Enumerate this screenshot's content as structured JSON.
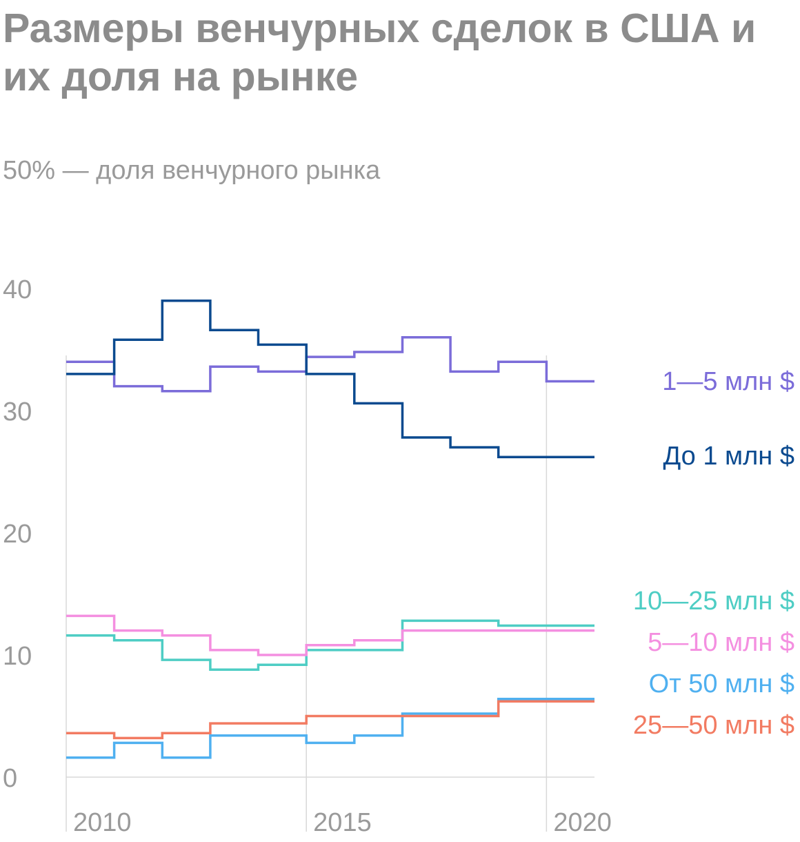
{
  "chart_title": "Размеры венчурных сделок в США и их доля на рынке",
  "chart_subtitle": "50% — доля венчурного рынка",
  "chart_data": {
    "type": "line",
    "title": "Размеры венчурных сделок в США и их доля на рынке",
    "subtitle": "50% — доля венчурного рынка",
    "xlabel": "",
    "ylabel": "",
    "ylim": [
      0,
      40
    ],
    "yticks": [
      0,
      10,
      20,
      30,
      40
    ],
    "xticks": [
      2010,
      2015,
      2020
    ],
    "xlim": [
      2010,
      2021
    ],
    "step": true,
    "grid": "vertical",
    "legend": "right, labels at line ends",
    "x": [
      2010,
      2011,
      2012,
      2013,
      2014,
      2015,
      2016,
      2017,
      2018,
      2019,
      2020
    ],
    "series": [
      {
        "name": "1—5 млн $",
        "color": "#7b6cd9",
        "values": [
          34.0,
          32.0,
          31.6,
          33.6,
          33.2,
          34.4,
          34.8,
          36.0,
          33.2,
          34.0,
          32.4
        ]
      },
      {
        "name": "До 1 млн $",
        "color": "#0b4a8f",
        "values": [
          33.0,
          35.8,
          39.0,
          36.6,
          35.4,
          33.0,
          30.6,
          27.8,
          27.0,
          26.2,
          26.2
        ]
      },
      {
        "name": "10—25 млн $",
        "color": "#4ecdc4",
        "values": [
          11.6,
          11.2,
          9.6,
          8.8,
          9.2,
          10.4,
          10.4,
          12.8,
          12.8,
          12.4,
          12.4
        ]
      },
      {
        "name": "5—10 млн $",
        "color": "#f48fe0",
        "values": [
          13.2,
          12.0,
          11.6,
          10.4,
          10.0,
          10.8,
          11.2,
          12.0,
          12.0,
          12.0,
          12.0
        ]
      },
      {
        "name": "От 50 млн $",
        "color": "#4fb0f0",
        "values": [
          1.6,
          2.8,
          1.6,
          3.4,
          3.4,
          2.8,
          3.4,
          5.2,
          5.2,
          6.4,
          6.4
        ]
      },
      {
        "name": "25—50 млн $",
        "color": "#f27b62",
        "values": [
          3.6,
          3.2,
          3.6,
          4.4,
          4.4,
          5.0,
          5.0,
          5.0,
          5.0,
          6.2,
          6.2
        ]
      }
    ]
  }
}
